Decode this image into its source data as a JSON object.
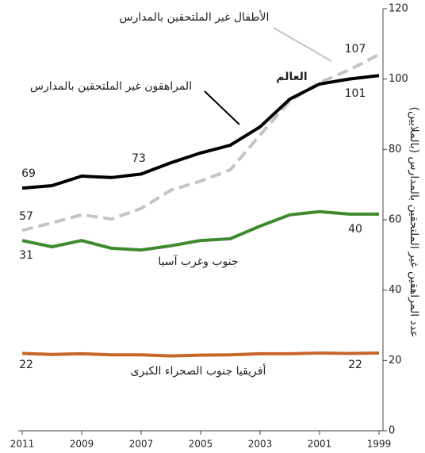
{
  "chart_data": {
    "type": "line",
    "y_label": "عدد المراهقين غير الملتحقين بالمدارس (بالملايين)",
    "x": [
      2011,
      2010,
      2009,
      2008,
      2007,
      2006,
      2005,
      2004,
      2003,
      2002,
      2001,
      2000,
      1999
    ],
    "xlim": [
      2011,
      1999
    ],
    "xticks": [
      2011,
      2009,
      2007,
      2005,
      2003,
      2001,
      1999
    ],
    "ylim": [
      0,
      120
    ],
    "yticks": [
      0,
      20,
      40,
      60,
      80,
      100,
      120
    ],
    "world_label": "العالم",
    "series": [
      {
        "name": "المراهقون غير الملتحقين بالمدارس",
        "color": "#000000",
        "dashed": false,
        "values": [
          69,
          69.7,
          72.4,
          72,
          73,
          76.2,
          79,
          81.2,
          86.4,
          94.3,
          98.6,
          100,
          101
        ]
      },
      {
        "name": "الأطفال غير الملتحقين بالمدارس",
        "color": "#c4c4c4",
        "dashed": true,
        "values": [
          57,
          59.1,
          61.4,
          60.2,
          63.2,
          68.4,
          71,
          74.2,
          84.1,
          93.8,
          99,
          102.6,
          107
        ]
      },
      {
        "name": "جنوب وغرب آسيا",
        "color": "#3f8a2e",
        "dashed": false,
        "values": [
          54.1,
          52.3,
          54.1,
          51.9,
          51.4,
          52.6,
          54.1,
          54.6,
          58.2,
          61.4,
          62.3,
          61.6,
          61.6
        ]
      },
      {
        "name": "أفريقيا جنوب الصحراء الكبرى",
        "color": "#c8662a",
        "dashed": false,
        "values": [
          22,
          21.7,
          21.9,
          21.6,
          21.6,
          21.3,
          21.5,
          21.6,
          21.9,
          21.9,
          22.1,
          22,
          22.1
        ]
      }
    ],
    "annotations": [
      "31",
      "40"
    ]
  }
}
